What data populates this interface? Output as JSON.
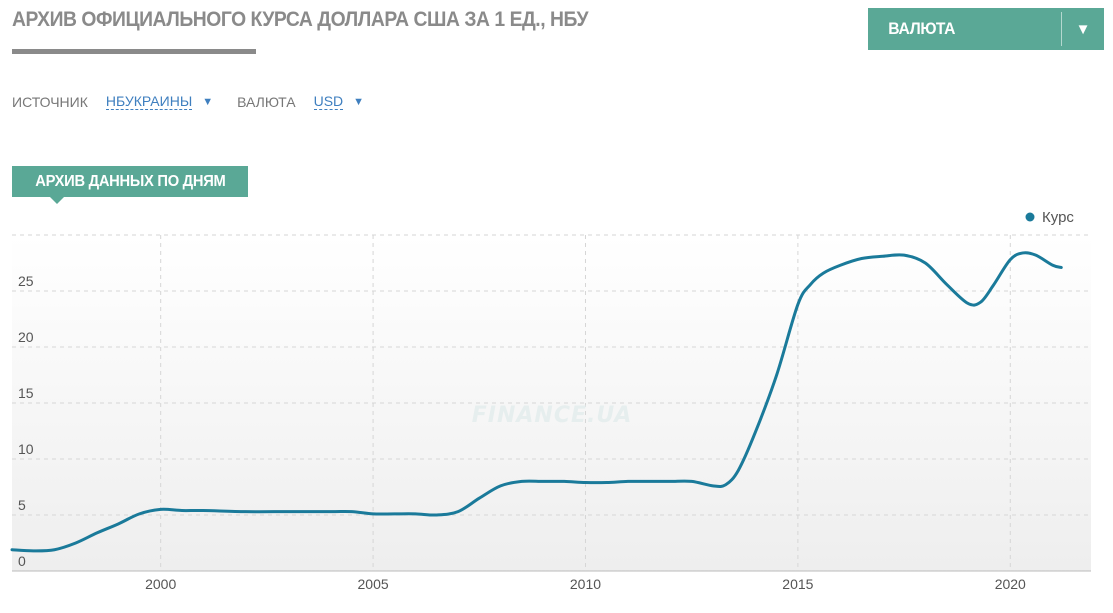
{
  "header": {
    "title": "АРХИВ ОФИЦИАЛЬНОГО КУРСА ДОЛЛАРА США ЗА 1 ЕД., НБУ",
    "currency_button_label": "ВАЛЮТА",
    "currency_button_arrow": "▼"
  },
  "filters": {
    "source_label": "ИСТОЧНИК",
    "source_value": "НБУКРАИНЫ",
    "currency_label": "ВАЛЮТА",
    "currency_value": "USD",
    "dropdown_arrow": "▼"
  },
  "section_tab": {
    "label": "АРХИВ ДАННЫХ ПО ДНЯМ"
  },
  "watermark": "FINANCE.UA",
  "colors": {
    "accent": "#5aa896",
    "line": "#1a7a9a",
    "link": "#3f7fbf"
  },
  "chart_data": {
    "type": "line",
    "title": "",
    "xlabel": "",
    "ylabel": "",
    "legend": {
      "entries": [
        "Курс"
      ],
      "position": "top-right"
    },
    "grid": true,
    "xlim": [
      1996.5,
      2021.9
    ],
    "ylim": [
      0,
      30
    ],
    "x_ticks": [
      2000,
      2005,
      2010,
      2015,
      2020
    ],
    "y_ticks": [
      0,
      5,
      10,
      15,
      20,
      25
    ],
    "series": [
      {
        "name": "Курс",
        "x": [
          1996.5,
          1997.0,
          1997.5,
          1998.0,
          1998.5,
          1999.0,
          1999.5,
          2000.0,
          2000.5,
          2001.0,
          2002.0,
          2003.0,
          2004.0,
          2004.5,
          2005.0,
          2005.5,
          2006.0,
          2006.5,
          2007.0,
          2007.5,
          2008.0,
          2008.5,
          2009.0,
          2009.5,
          2010.0,
          2010.5,
          2011.0,
          2011.5,
          2012.0,
          2012.5,
          2013.0,
          2013.3,
          2013.6,
          2014.0,
          2014.5,
          2015.0,
          2015.3,
          2015.6,
          2016.0,
          2016.5,
          2017.0,
          2017.5,
          2018.0,
          2018.5,
          2019.0,
          2019.3,
          2019.6,
          2020.0,
          2020.3,
          2020.6,
          2021.0,
          2021.2
        ],
        "values": [
          1.9,
          1.8,
          1.9,
          2.5,
          3.4,
          4.2,
          5.1,
          5.5,
          5.4,
          5.4,
          5.3,
          5.3,
          5.3,
          5.3,
          5.1,
          5.1,
          5.1,
          5.0,
          5.3,
          6.5,
          7.6,
          8.0,
          8.0,
          8.0,
          7.9,
          7.9,
          8.0,
          8.0,
          8.0,
          8.0,
          7.6,
          7.7,
          9.0,
          12.4,
          17.5,
          23.8,
          25.6,
          26.6,
          27.3,
          27.9,
          28.1,
          28.2,
          27.5,
          25.6,
          23.9,
          24.0,
          25.5,
          27.8,
          28.4,
          28.2,
          27.3,
          27.1
        ]
      }
    ]
  }
}
